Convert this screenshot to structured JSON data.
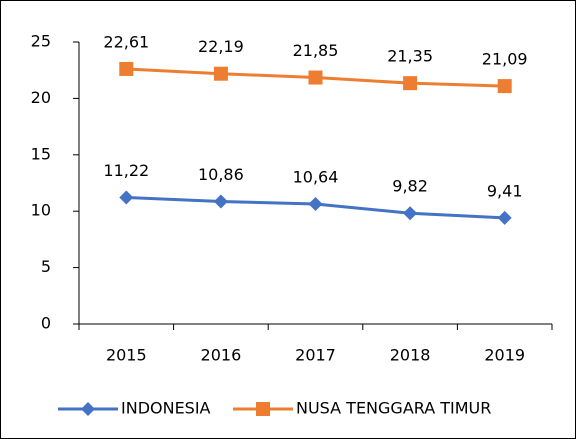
{
  "chart_data": {
    "type": "line",
    "categories": [
      "2015",
      "2016",
      "2017",
      "2018",
      "2019"
    ],
    "series": [
      {
        "name": "INDONESIA",
        "color": "#4472c4",
        "marker": "diamond",
        "values": [
          11.22,
          10.86,
          10.64,
          9.82,
          9.41
        ],
        "value_labels": [
          "11,22",
          "10,86",
          "10,64",
          "9,82",
          "9,41"
        ]
      },
      {
        "name": "NUSA TENGGARA TIMUR",
        "color": "#ed7d31",
        "marker": "square",
        "values": [
          22.61,
          22.19,
          21.85,
          21.35,
          21.09
        ],
        "value_labels": [
          "22,61",
          "22,19",
          "21,85",
          "21,35",
          "21,09"
        ]
      }
    ],
    "ylim": [
      0,
      25
    ],
    "yticks": [
      0,
      5,
      10,
      15,
      20,
      25
    ],
    "grid": false,
    "legend": "bottom"
  }
}
